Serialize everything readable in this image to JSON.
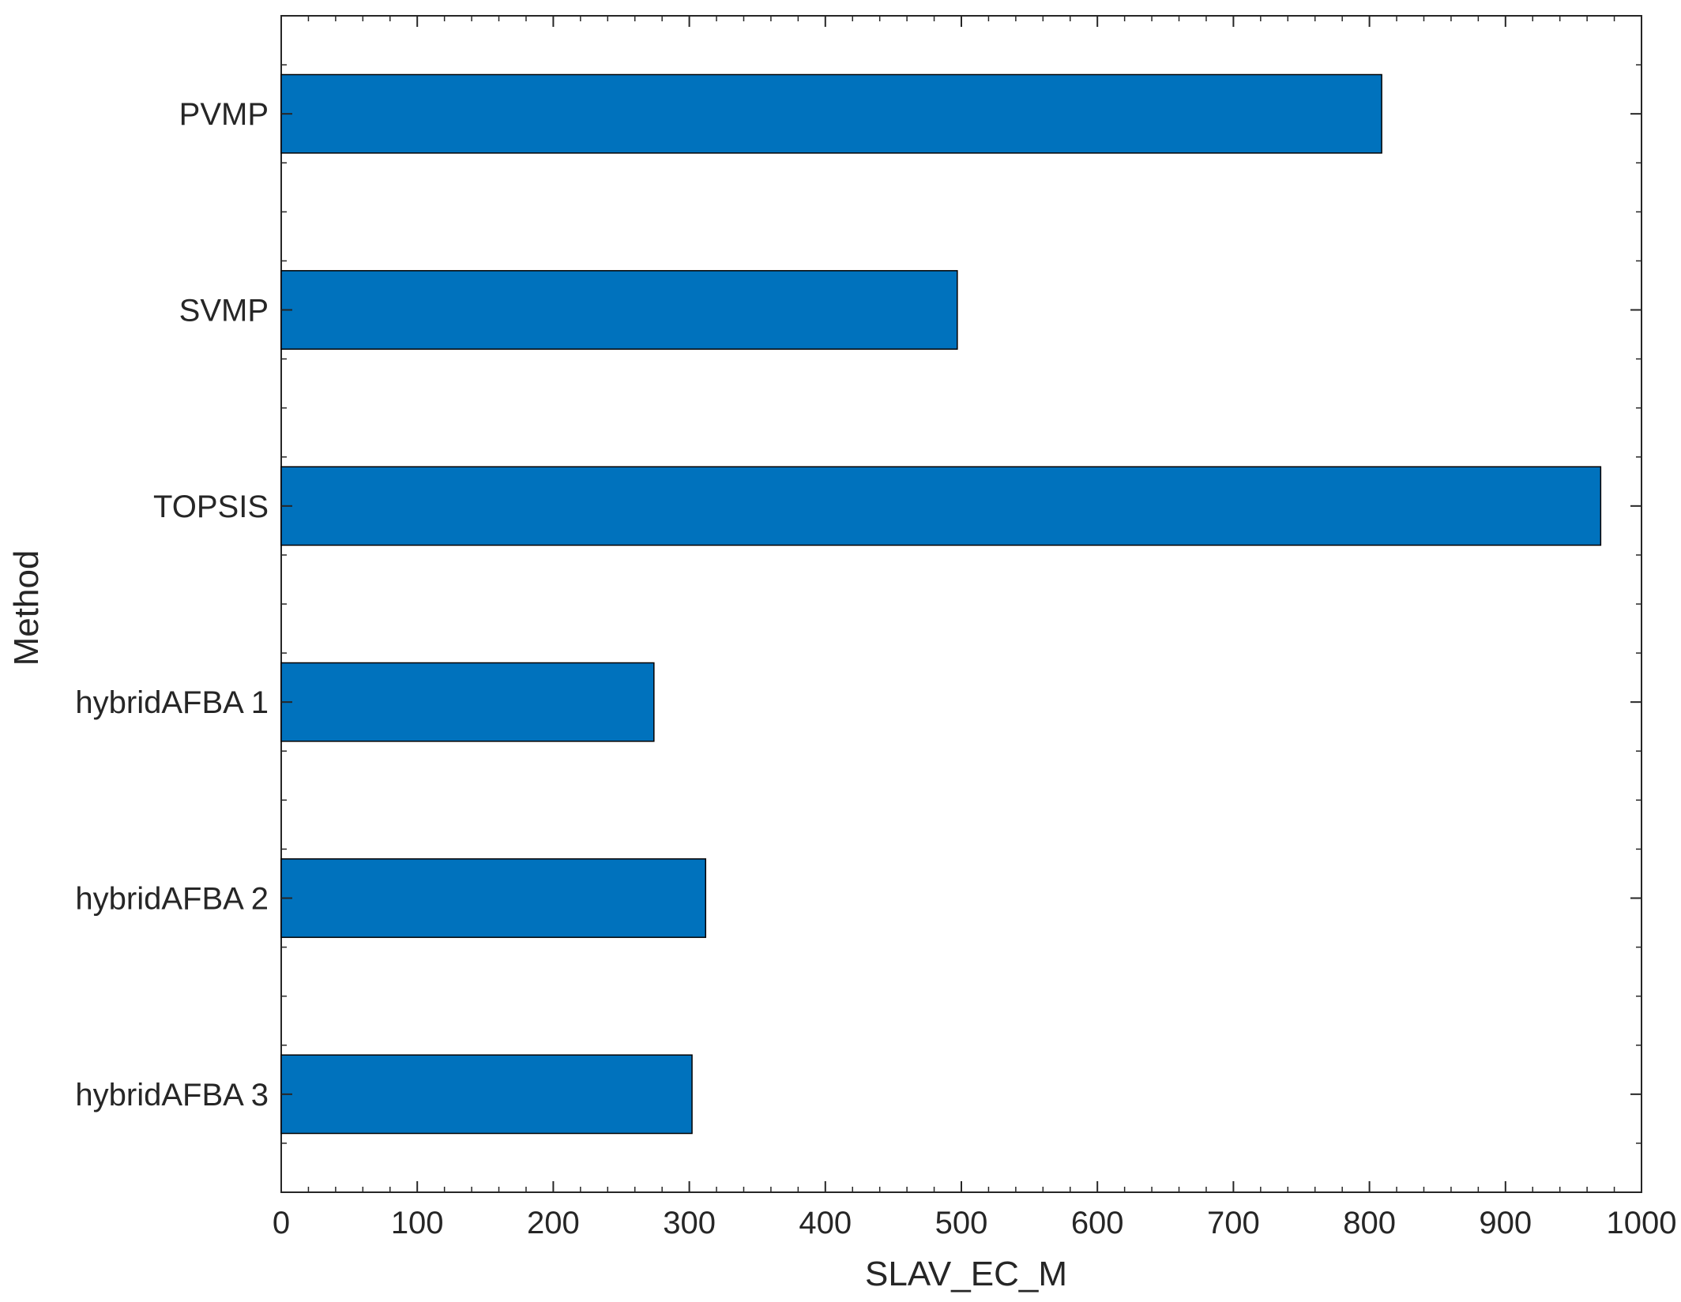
{
  "chart_data": {
    "type": "bar",
    "orientation": "horizontal",
    "categories": [
      "PVMP",
      "SVMP",
      "TOPSIS",
      "hybridAFBA 1",
      "hybridAFBA 2",
      "hybridAFBA 3"
    ],
    "values": [
      809,
      497,
      970,
      274,
      312,
      302
    ],
    "xlabel": "SLAV_EC_M",
    "ylabel": "Method",
    "xlim": [
      0,
      1000
    ],
    "xticks": [
      0,
      100,
      200,
      300,
      400,
      500,
      600,
      700,
      800,
      900,
      1000
    ],
    "xtick_labels": [
      "0",
      "100",
      "200",
      "300",
      "400",
      "500",
      "600",
      "700",
      "800",
      "900",
      "1000"
    ],
    "x_minor_step": 20,
    "grid": false,
    "legend": "none",
    "bar_color": "#0072BD",
    "axis_color": "#262626"
  }
}
